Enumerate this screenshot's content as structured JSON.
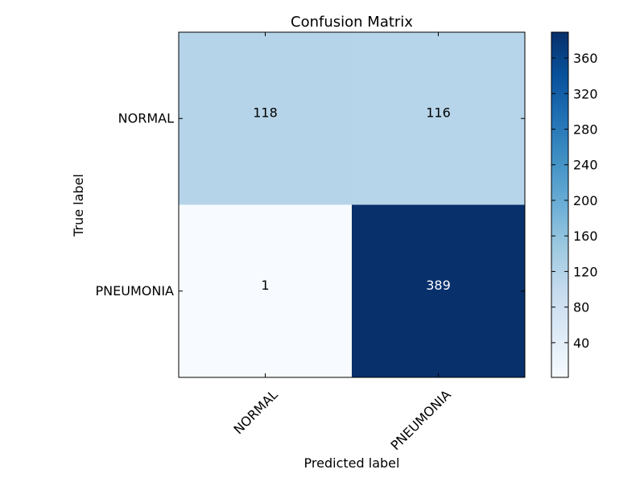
{
  "chart_data": {
    "type": "heatmap",
    "title": "Confusion Matrix",
    "xlabel": "Predicted label",
    "ylabel": "True label",
    "row_labels": [
      "NORMAL",
      "PNEUMONIA"
    ],
    "col_labels": [
      "NORMAL",
      "PNEUMONIA"
    ],
    "values": [
      [
        118,
        116
      ],
      [
        1,
        389
      ]
    ],
    "colormap": "Blues",
    "colorbar": {
      "min": 1,
      "max": 389,
      "ticks": [
        40,
        80,
        120,
        160,
        200,
        240,
        280,
        320,
        360
      ]
    },
    "x_tick_rotation_deg": 45,
    "grid": false
  }
}
